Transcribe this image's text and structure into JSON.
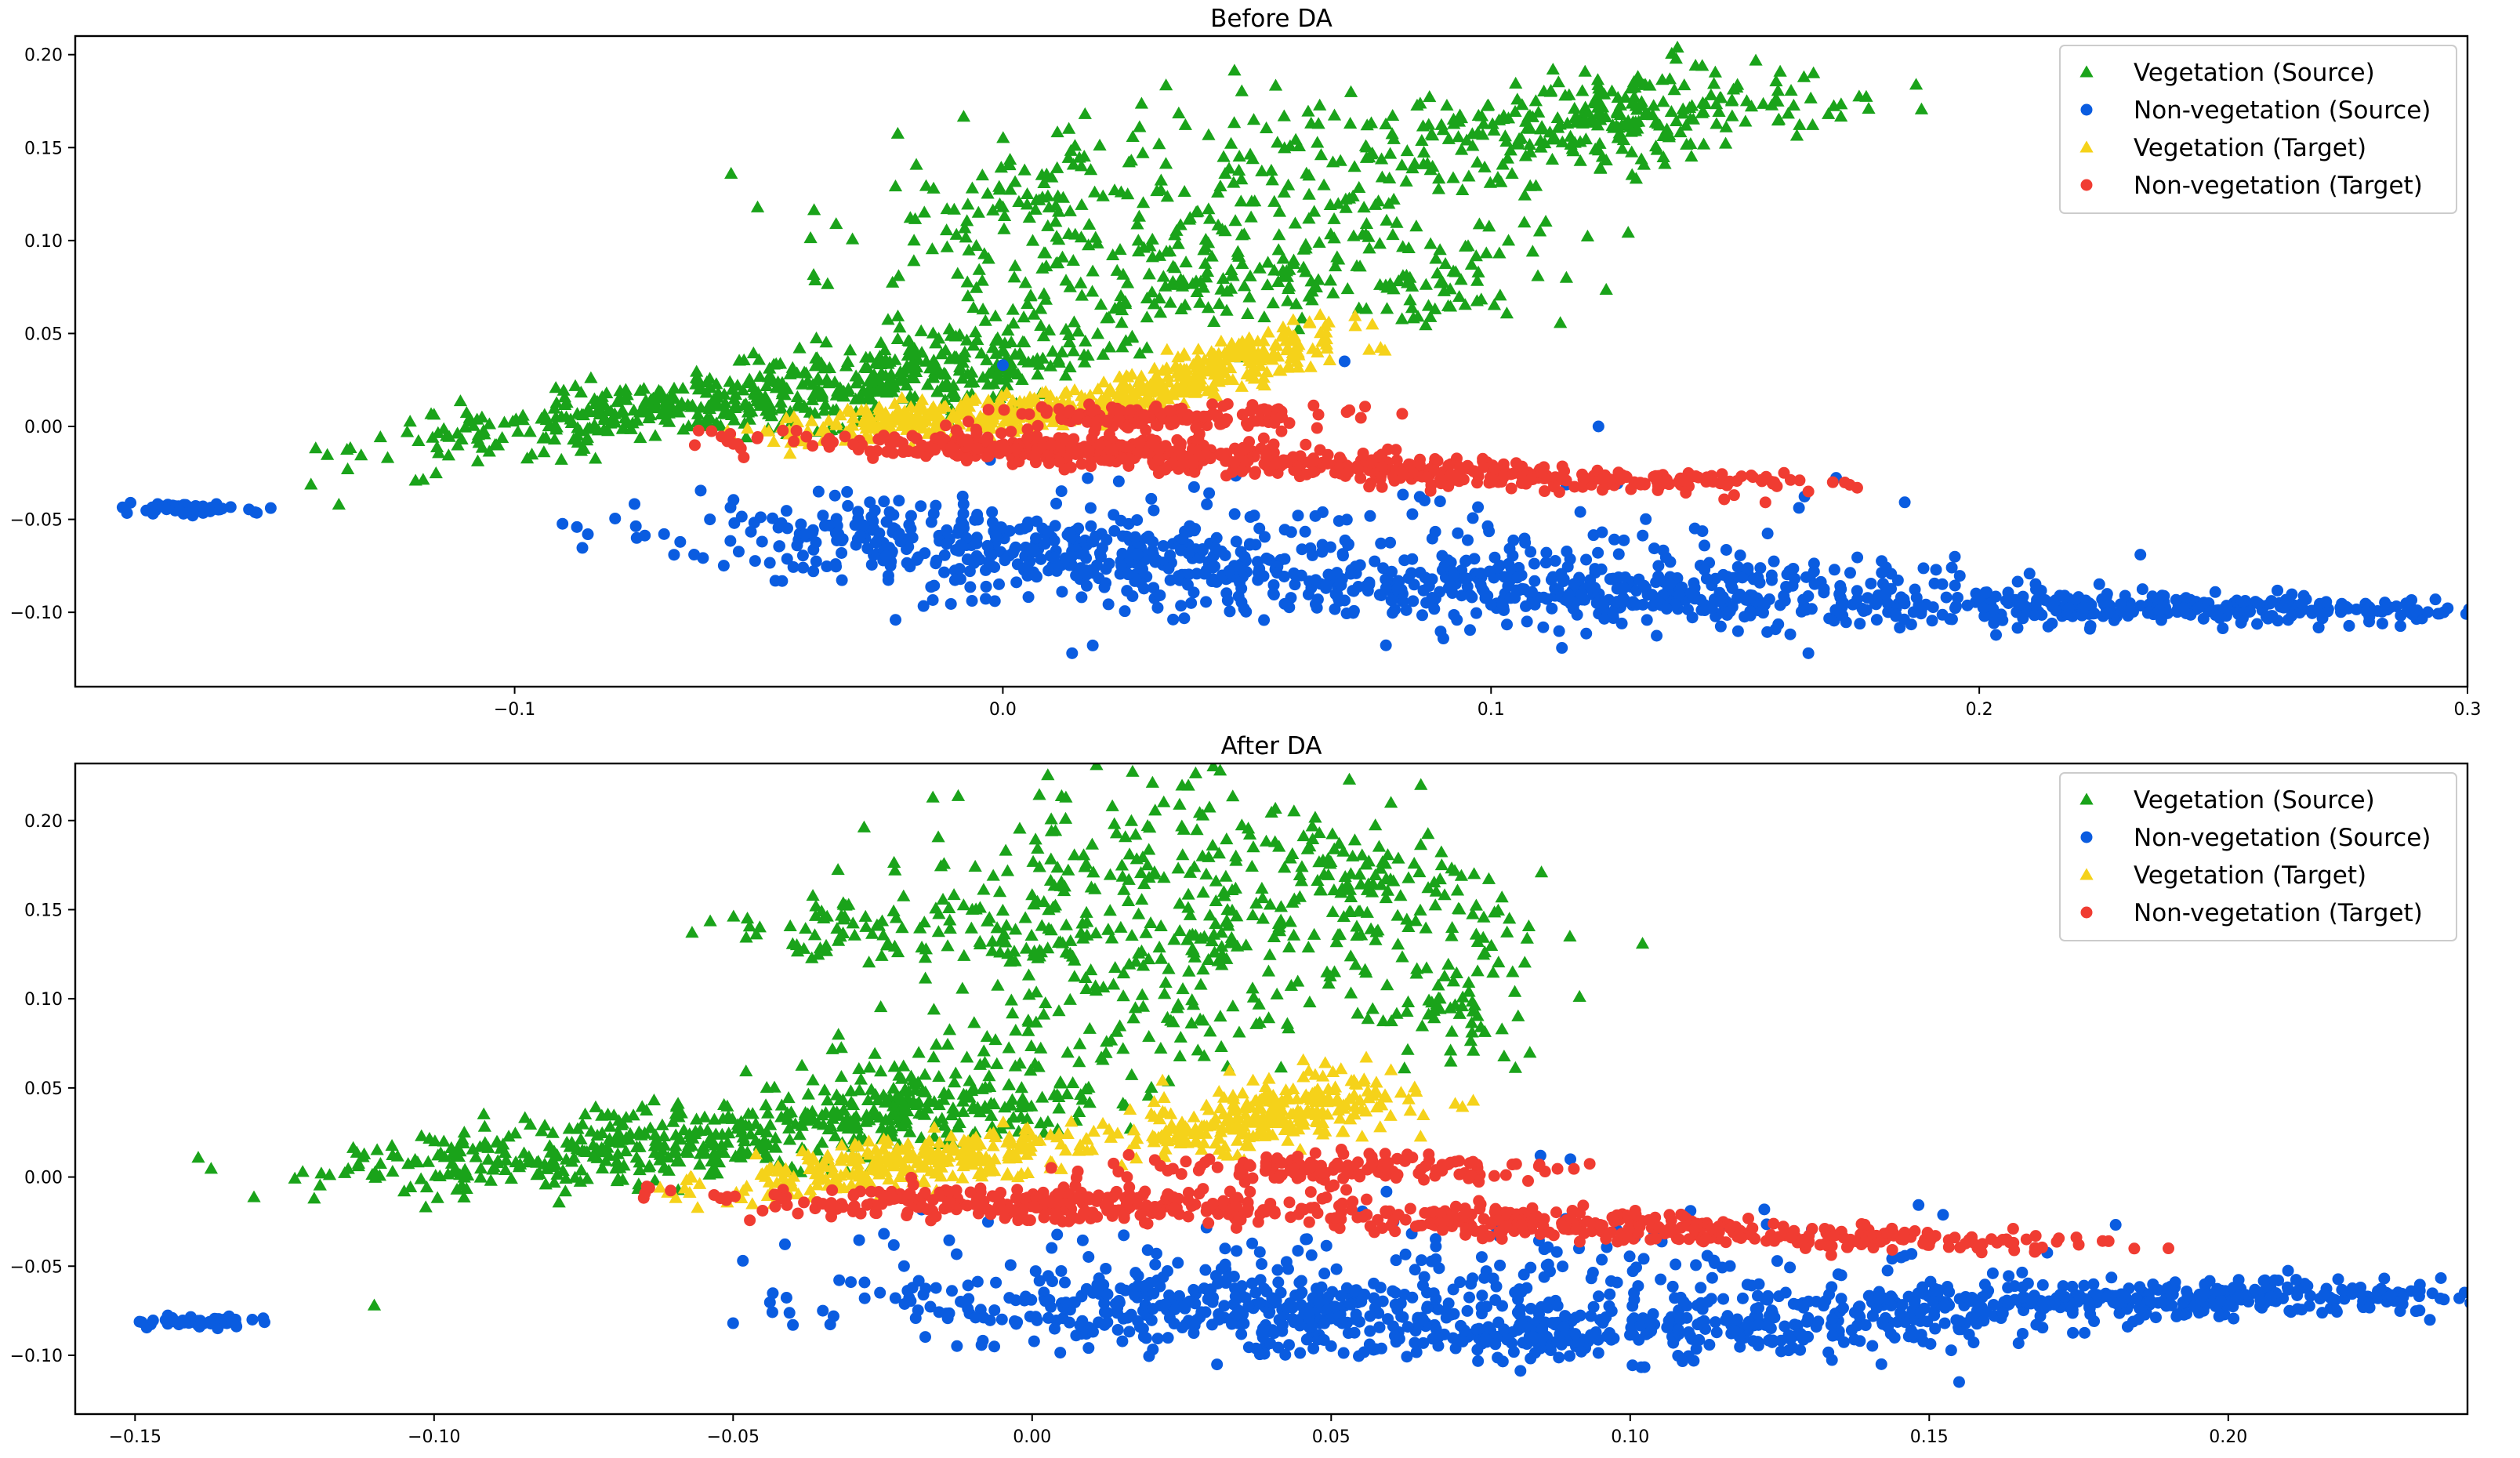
{
  "chart_data": [
    {
      "type": "scatter",
      "title": "Before DA",
      "xlabel": "",
      "ylabel": "",
      "xlim": [
        -0.19,
        0.3
      ],
      "ylim": [
        -0.14,
        0.21
      ],
      "xticks": [
        -0.1,
        0.0,
        0.1,
        0.2,
        0.3
      ],
      "xtick_labels": [
        "−0.1",
        "0.0",
        "0.1",
        "0.2",
        "0.3"
      ],
      "yticks": [
        -0.1,
        -0.05,
        0.0,
        0.05,
        0.1,
        0.15,
        0.2
      ],
      "ytick_labels": [
        "−0.10",
        "−0.05",
        "0.00",
        "0.05",
        "0.10",
        "0.15",
        "0.20"
      ],
      "legend_position": "top-right",
      "series": [
        {
          "name": "Vegetation (Source)",
          "marker": "triangle",
          "color": "#1aa31a",
          "clusters": [
            {
              "center": [
                -0.06,
                0.012
              ],
              "spread": [
                0.035,
                0.008
              ],
              "tilt": 0.32,
              "count": 420
            },
            {
              "center": [
                -0.01,
                0.035
              ],
              "spread": [
                0.018,
                0.012
              ],
              "tilt": 0.5,
              "count": 160
            },
            {
              "center": [
                0.02,
                0.11
              ],
              "spread": [
                0.025,
                0.03
              ],
              "tilt": 0.3,
              "count": 220
            },
            {
              "center": [
                0.075,
                0.13
              ],
              "spread": [
                0.015,
                0.035
              ],
              "tilt": 0.6,
              "count": 120
            },
            {
              "center": [
                0.125,
                0.165
              ],
              "spread": [
                0.025,
                0.012
              ],
              "tilt": 0.4,
              "count": 280
            },
            {
              "center": [
                0.045,
                0.08
              ],
              "spread": [
                0.02,
                0.012
              ],
              "tilt": 0.35,
              "count": 90
            },
            {
              "center": [
                0.09,
                0.075
              ],
              "spread": [
                0.007,
                0.012
              ],
              "tilt": 0.0,
              "count": 40
            }
          ],
          "points": [
            [
              -0.122,
              -0.003
            ],
            [
              -0.136,
              -0.042
            ],
            [
              0.11,
              0.105
            ],
            [
              -0.005,
              0.115
            ],
            [
              0.0,
              0.118
            ],
            [
              0.005,
              0.125
            ],
            [
              0.018,
              0.138
            ]
          ]
        },
        {
          "name": "Non-vegetation (Source)",
          "marker": "circle",
          "color": "#0a5ce0",
          "clusters": [
            {
              "center": [
                -0.167,
                -0.044
              ],
              "spread": [
                0.007,
                0.0015
              ],
              "tilt": -0.05,
              "count": 50
            },
            {
              "center": [
                0.0,
                -0.065
              ],
              "spread": [
                0.035,
                0.01
              ],
              "tilt": -0.18,
              "count": 380
            },
            {
              "center": [
                0.12,
                -0.088
              ],
              "spread": [
                0.04,
                0.009
              ],
              "tilt": -0.08,
              "count": 420
            },
            {
              "center": [
                0.24,
                -0.098
              ],
              "spread": [
                0.04,
                0.004
              ],
              "tilt": -0.02,
              "count": 320
            },
            {
              "center": [
                0.065,
                -0.07
              ],
              "spread": [
                0.05,
                0.02
              ],
              "tilt": 0.0,
              "count": 200
            }
          ],
          "points": [
            [
              -0.085,
              -0.058
            ],
            [
              -0.075,
              -0.06
            ],
            [
              -0.06,
              -0.05
            ],
            [
              -0.055,
              -0.052
            ],
            [
              0.0,
              0.033
            ],
            [
              0.07,
              0.035
            ],
            [
              0.165,
              -0.122
            ],
            [
              0.233,
              -0.069
            ],
            [
              0.122,
              0.0
            ],
            [
              0.289,
              -0.1
            ]
          ]
        },
        {
          "name": "Vegetation (Target)",
          "marker": "triangle",
          "color": "#f5d21a",
          "clusters": [
            {
              "center": [
                -0.01,
                0.005
              ],
              "spread": [
                0.018,
                0.005
              ],
              "tilt": 0.25,
              "count": 260
            },
            {
              "center": [
                0.035,
                0.022
              ],
              "spread": [
                0.018,
                0.005
              ],
              "tilt": 0.6,
              "count": 220
            },
            {
              "center": [
                0.05,
                0.04
              ],
              "spread": [
                0.012,
                0.004
              ],
              "tilt": 0.7,
              "count": 90
            }
          ],
          "points": [
            [
              0.065,
              0.06
            ]
          ]
        },
        {
          "name": "Non-vegetation (Target)",
          "marker": "circle",
          "color": "#f03c32",
          "clusters": [
            {
              "center": [
                0.015,
                -0.013
              ],
              "spread": [
                0.03,
                0.004
              ],
              "tilt": -0.1,
              "count": 330
            },
            {
              "center": [
                0.08,
                -0.023
              ],
              "spread": [
                0.03,
                0.004
              ],
              "tilt": -0.15,
              "count": 260
            },
            {
              "center": [
                0.035,
                0.005
              ],
              "spread": [
                0.018,
                0.0035
              ],
              "tilt": 0.0,
              "count": 160
            },
            {
              "center": [
                0.13,
                -0.028
              ],
              "spread": [
                0.02,
                0.002
              ],
              "tilt": -0.05,
              "count": 70
            }
          ],
          "points": [
            [
              0.158,
              -0.03
            ],
            [
              0.165,
              -0.035
            ],
            [
              0.17,
              -0.03
            ],
            [
              0.175,
              -0.033
            ],
            [
              0.16,
              -0.025
            ]
          ]
        }
      ]
    },
    {
      "type": "scatter",
      "title": "After DA",
      "xlabel": "",
      "ylabel": "",
      "xlim": [
        -0.16,
        0.24
      ],
      "ylim": [
        -0.133,
        0.232
      ],
      "xticks": [
        -0.15,
        -0.1,
        -0.05,
        0.0,
        0.05,
        0.1,
        0.15,
        0.2
      ],
      "xtick_labels": [
        "−0.15",
        "−0.10",
        "−0.05",
        "0.00",
        "0.05",
        "0.10",
        "0.15",
        "0.20"
      ],
      "yticks": [
        -0.1,
        -0.05,
        0.0,
        0.05,
        0.1,
        0.15,
        0.2
      ],
      "ytick_labels": [
        "−0.10",
        "−0.05",
        "0.00",
        "0.05",
        "0.10",
        "0.15",
        "0.20"
      ],
      "legend_position": "top-right",
      "series": [
        {
          "name": "Vegetation (Source)",
          "marker": "triangle",
          "color": "#1aa31a",
          "clusters": [
            {
              "center": [
                -0.06,
                0.02
              ],
              "spread": [
                0.03,
                0.01
              ],
              "tilt": 0.35,
              "count": 440
            },
            {
              "center": [
                -0.015,
                0.045
              ],
              "spread": [
                0.015,
                0.015
              ],
              "tilt": 0.5,
              "count": 150
            },
            {
              "center": [
                0.0,
                0.15
              ],
              "spread": [
                0.015,
                0.025
              ],
              "tilt": 0.2,
              "count": 150
            },
            {
              "center": [
                0.03,
                0.16
              ],
              "spread": [
                0.015,
                0.03
              ],
              "tilt": 0.4,
              "count": 160
            },
            {
              "center": [
                0.055,
                0.175
              ],
              "spread": [
                0.01,
                0.03
              ],
              "tilt": 0.6,
              "count": 120
            },
            {
              "center": [
                -0.035,
                0.14
              ],
              "spread": [
                0.008,
                0.01
              ],
              "tilt": 0.6,
              "count": 50
            },
            {
              "center": [
                0.07,
                0.095
              ],
              "spread": [
                0.01,
                0.02
              ],
              "tilt": 0.0,
              "count": 60
            },
            {
              "center": [
                0.02,
                0.09
              ],
              "spread": [
                0.02,
                0.02
              ],
              "tilt": 0.0,
              "count": 90
            }
          ],
          "points": [
            [
              -0.11,
              -0.072
            ],
            [
              -0.105,
              -0.008
            ],
            [
              0.065,
              0.22
            ],
            [
              0.06,
              0.21
            ]
          ]
        },
        {
          "name": "Non-vegetation (Source)",
          "marker": "circle",
          "color": "#0a5ce0",
          "clusters": [
            {
              "center": [
                -0.14,
                -0.081
              ],
              "spread": [
                0.005,
                0.0015
              ],
              "tilt": 0.0,
              "count": 50
            },
            {
              "center": [
                0.03,
                -0.075
              ],
              "spread": [
                0.03,
                0.01
              ],
              "tilt": -0.05,
              "count": 360
            },
            {
              "center": [
                0.11,
                -0.085
              ],
              "spread": [
                0.035,
                0.008
              ],
              "tilt": 0.1,
              "count": 360
            },
            {
              "center": [
                0.19,
                -0.068
              ],
              "spread": [
                0.03,
                0.005
              ],
              "tilt": 0.02,
              "count": 320
            },
            {
              "center": [
                0.08,
                -0.055
              ],
              "spread": [
                0.05,
                0.018
              ],
              "tilt": 0.0,
              "count": 200
            }
          ],
          "points": [
            [
              -0.05,
              -0.082
            ],
            [
              -0.04,
              -0.083
            ],
            [
              -0.035,
              -0.075
            ],
            [
              -0.028,
              -0.068
            ],
            [
              0.09,
              0.01
            ],
            [
              0.085,
              0.012
            ],
            [
              0.155,
              -0.115
            ],
            [
              0.142,
              -0.105
            ],
            [
              0.225,
              -0.064
            ],
            [
              0.216,
              -0.066
            ]
          ]
        },
        {
          "name": "Vegetation (Target)",
          "marker": "triangle",
          "color": "#f5d21a",
          "clusters": [
            {
              "center": [
                -0.02,
                0.008
              ],
              "spread": [
                0.017,
                0.007
              ],
              "tilt": 0.45,
              "count": 300
            },
            {
              "center": [
                0.035,
                0.03
              ],
              "spread": [
                0.015,
                0.008
              ],
              "tilt": 0.55,
              "count": 180
            },
            {
              "center": [
                0.05,
                0.045
              ],
              "spread": [
                0.01,
                0.008
              ],
              "tilt": 0.5,
              "count": 90
            }
          ],
          "points": [
            [
              0.06,
              0.06
            ]
          ]
        },
        {
          "name": "Non-vegetation (Target)",
          "marker": "circle",
          "color": "#f03c32",
          "clusters": [
            {
              "center": [
                0.0,
                -0.015
              ],
              "spread": [
                0.025,
                0.005
              ],
              "tilt": -0.08,
              "count": 300
            },
            {
              "center": [
                0.085,
                -0.025
              ],
              "spread": [
                0.025,
                0.004
              ],
              "tilt": -0.12,
              "count": 240
            },
            {
              "center": [
                0.05,
                0.005
              ],
              "spread": [
                0.018,
                0.004
              ],
              "tilt": 0.0,
              "count": 150
            },
            {
              "center": [
                0.125,
                -0.033
              ],
              "spread": [
                0.02,
                0.003
              ],
              "tilt": -0.05,
              "count": 80
            },
            {
              "center": [
                0.155,
                -0.036
              ],
              "spread": [
                0.012,
                0.003
              ],
              "tilt": 0.0,
              "count": 40
            }
          ],
          "points": [
            [
              -0.042,
              -0.012
            ],
            [
              -0.035,
              -0.015
            ],
            [
              0.19,
              -0.04
            ],
            [
              0.175,
              -0.038
            ],
            [
              0.18,
              -0.036
            ]
          ]
        }
      ]
    }
  ]
}
